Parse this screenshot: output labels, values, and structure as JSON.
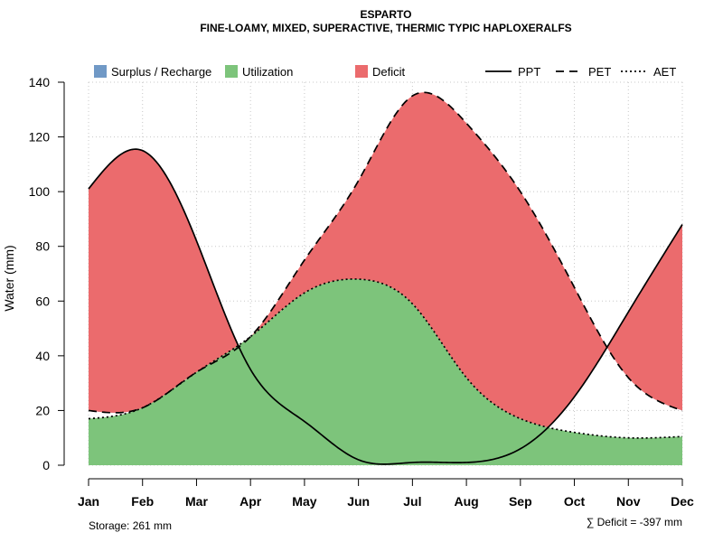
{
  "chart_data": {
    "type": "area",
    "title": "ESPARTO",
    "subtitle": "FINE-LOAMY, MIXED, SUPERACTIVE, THERMIC TYPIC HAPLOXERALFS",
    "xlabel": "",
    "ylabel": "Water (mm)",
    "ylim": [
      0,
      140
    ],
    "yticks": [
      0,
      20,
      40,
      60,
      80,
      100,
      120,
      140
    ],
    "grid": true,
    "categories": [
      "Jan",
      "Feb",
      "Mar",
      "Apr",
      "May",
      "Jun",
      "Jul",
      "Aug",
      "Sep",
      "Oct",
      "Nov",
      "Dec"
    ],
    "x": [
      1,
      2,
      3,
      4,
      5,
      6,
      7,
      8,
      9,
      10,
      11,
      12
    ],
    "series": [
      {
        "name": "PPT",
        "style": "solid",
        "values": [
          101,
          115,
          82,
          35,
          16,
          2,
          1,
          1,
          6,
          25,
          56,
          88
        ]
      },
      {
        "name": "PET",
        "style": "dashed",
        "values": [
          20,
          21,
          34,
          47,
          75,
          104,
          135,
          125,
          100,
          65,
          32,
          20
        ]
      },
      {
        "name": "AET",
        "style": "dotted",
        "values": [
          17,
          21,
          34,
          47,
          63,
          68,
          59,
          32,
          17,
          12,
          10,
          10.5
        ]
      }
    ],
    "legend": {
      "position": "top",
      "areas": [
        {
          "label": "Surplus / Recharge",
          "color": "#7099C6"
        },
        {
          "label": "Utilization",
          "color": "#7DC47B"
        },
        {
          "label": "Deficit",
          "color": "#EB6B6D"
        }
      ],
      "lines": [
        {
          "label": "PPT",
          "style": "solid"
        },
        {
          "label": "PET",
          "style": "dashed"
        },
        {
          "label": "AET",
          "style": "dotted"
        }
      ]
    },
    "annotations": {
      "storage": "Storage: 261 mm",
      "deficit": "∑ Deficit = -397 mm"
    }
  }
}
